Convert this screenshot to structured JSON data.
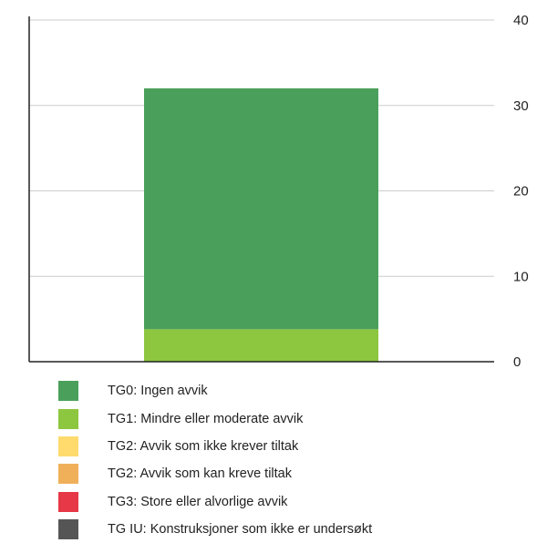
{
  "chart_data": {
    "type": "bar",
    "stacked": true,
    "categories": [
      ""
    ],
    "ylim": [
      0,
      40
    ],
    "yticks": [
      0,
      10,
      20,
      30,
      40
    ],
    "y_axis_side": "right",
    "grid": true,
    "legend_position": "bottom",
    "series": [
      {
        "name": "TG0: Ingen avvik",
        "values": [
          28.2
        ],
        "color": "#4aa05a"
      },
      {
        "name": "TG1: Mindre eller moderate avvik",
        "values": [
          3.8
        ],
        "color": "#8dc63f"
      },
      {
        "name": "TG2: Avvik som ikke krever tiltak",
        "values": [
          0
        ],
        "color": "#ffdb6e"
      },
      {
        "name": "TG2: Avvik som kan kreve tiltak",
        "values": [
          0
        ],
        "color": "#f0b05a"
      },
      {
        "name": "TG3: Store eller alvorlige avvik",
        "values": [
          0
        ],
        "color": "#e63846"
      },
      {
        "name": "TG IU: Konstruksjoner som ikke er undersøkt",
        "values": [
          0
        ],
        "color": "#555555"
      }
    ]
  }
}
